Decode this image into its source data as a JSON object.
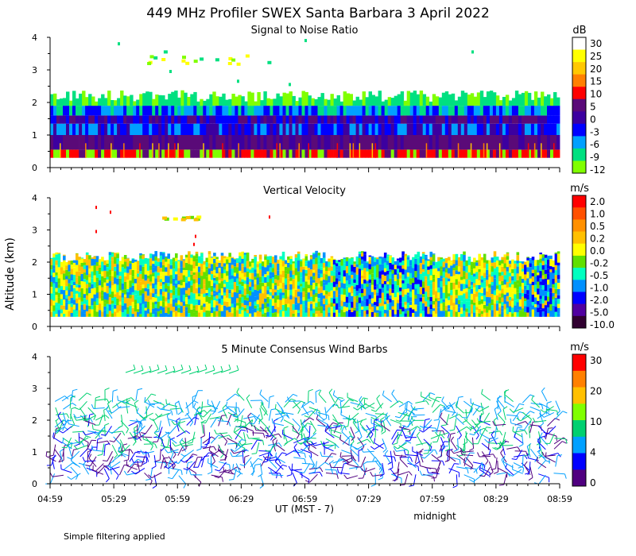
{
  "title": "449 MHz Profiler SWEX Santa Barbara  3 April 2022",
  "ylabel": "Altitude (km)",
  "xlabel": "UT  (MST - 7)",
  "midnight_label": "midnight",
  "footnote": "Simple filtering applied",
  "chart_data": [
    {
      "type": "heatmap",
      "title": "Signal to Noise Ratio",
      "unit": "dB",
      "x_ticks": [
        "04:59",
        "05:29",
        "05:59",
        "06:29",
        "06:59",
        "07:29",
        "07:59",
        "08:29",
        "08:59"
      ],
      "y_ticks": [
        "0",
        "1",
        "2",
        "3",
        "4"
      ],
      "ylim": [
        0,
        4
      ],
      "colorbar": {
        "labels": [
          "30",
          "25",
          "20",
          "15",
          "10",
          "5",
          "0",
          "-3",
          "-6",
          "-9",
          "-12"
        ],
        "colors": [
          "#ffffff",
          "#ffff00",
          "#ffc800",
          "#ff8000",
          "#ff0000",
          "#5a0a78",
          "#3c00a0",
          "#0000ff",
          "#00a0ff",
          "#00e080",
          "#80ff00"
        ]
      }
    },
    {
      "type": "heatmap",
      "title": "Vertical Velocity",
      "unit": "m/s",
      "x_ticks": [
        "04:59",
        "05:29",
        "05:59",
        "06:29",
        "06:59",
        "07:29",
        "07:59",
        "08:29",
        "08:59"
      ],
      "y_ticks": [
        "0",
        "1",
        "2",
        "3",
        "4"
      ],
      "ylim": [
        0,
        4
      ],
      "colorbar": {
        "labels": [
          "2.0",
          "1.0",
          "0.5",
          "0.2",
          "0.0",
          "-0.2",
          "-0.5",
          "-1.0",
          "-2.0",
          "-5.0",
          "-10.0"
        ],
        "colors": [
          "#ff0000",
          "#ff5000",
          "#ff9000",
          "#ffc000",
          "#ffff00",
          "#60e000",
          "#00ffc0",
          "#0090ff",
          "#0000ff",
          "#5000a0",
          "#300030"
        ]
      }
    },
    {
      "type": "wind_barbs",
      "title": "5 Minute Consensus Wind Barbs",
      "unit": "m/s",
      "x_ticks": [
        "04:59",
        "05:29",
        "05:59",
        "06:29",
        "06:59",
        "07:29",
        "07:59",
        "08:29",
        "08:59"
      ],
      "y_ticks": [
        "0",
        "1",
        "2",
        "3",
        "4"
      ],
      "ylim": [
        0,
        4
      ],
      "colorbar": {
        "labels": [
          "30",
          "20",
          "10",
          "4",
          "0"
        ],
        "colors": [
          "#ff0000",
          "#ff8000",
          "#ffc000",
          "#80ff00",
          "#00d070",
          "#00a0ff",
          "#0000ff",
          "#500080"
        ]
      }
    }
  ]
}
